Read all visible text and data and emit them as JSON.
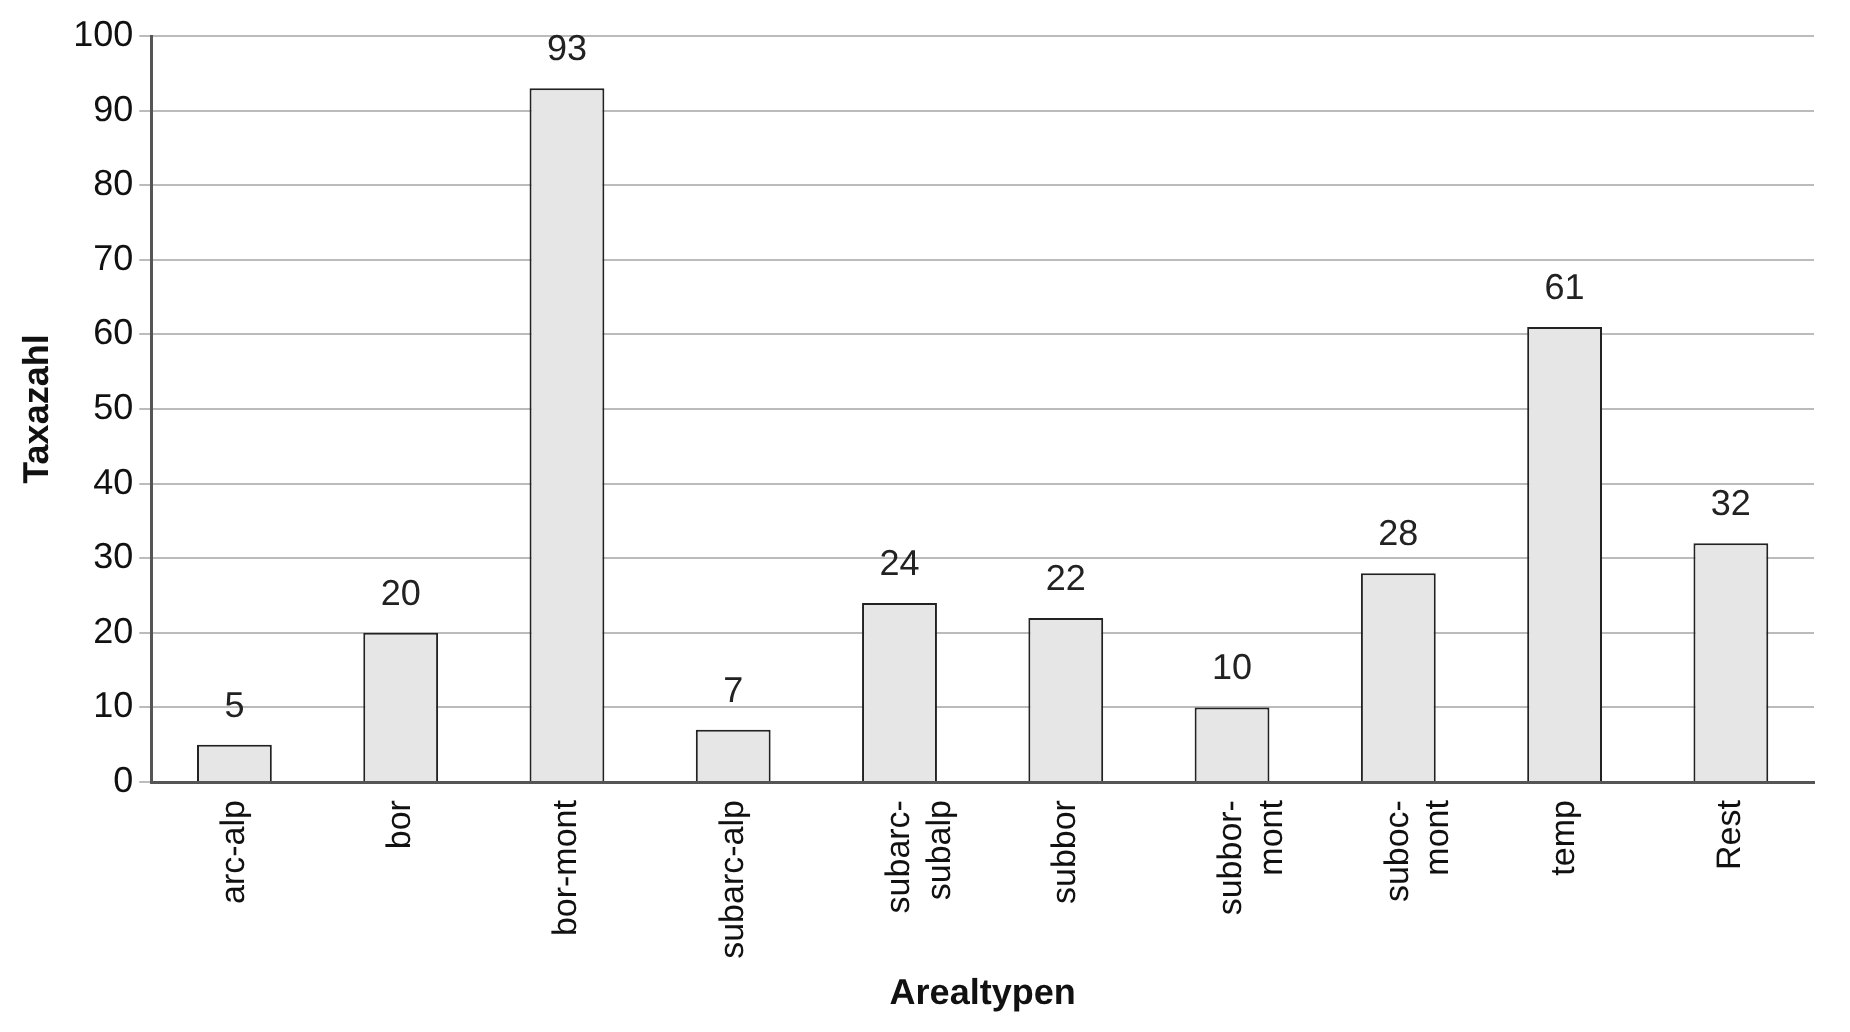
{
  "chart_data": {
    "type": "bar",
    "xlabel": "Arealtypen",
    "ylabel": "Taxazahl",
    "categories": [
      "arc-alp",
      "bor",
      "bor-mont",
      "subarc-alp",
      "subarc-\nsubalp",
      "subbor",
      "subbor-\nmont",
      "suboc-\nmont",
      "temp",
      "Rest"
    ],
    "values": [
      5,
      20,
      93,
      7,
      24,
      22,
      10,
      28,
      61,
      32
    ],
    "color": "#e6e6e6",
    "ylim": [
      0,
      100
    ],
    "yticks": [
      0,
      10,
      20,
      30,
      40,
      50,
      60,
      70,
      80,
      90,
      100
    ],
    "grid": "y",
    "data_labels": true,
    "legend": false
  }
}
